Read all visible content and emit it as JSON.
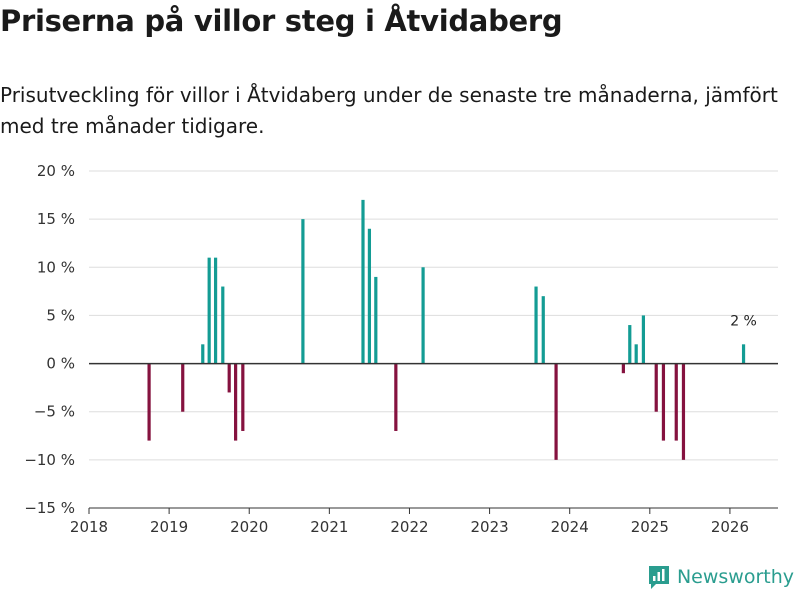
{
  "title": "Priserna på villor steg i Åtvidaberg",
  "subtitle": "Prisutveckling för villor i Åtvidaberg under de senaste tre månaderna, jämfört med tre månader tidigare.",
  "brand": "Newsworthy",
  "colors": {
    "positive": "#139c94",
    "negative": "#85123f",
    "grid": "#dddddd",
    "zero_line": "#333333"
  },
  "chart_data": {
    "type": "bar",
    "title": "Priserna på villor steg i Åtvidaberg",
    "xlabel": "",
    "ylabel": "",
    "x_unit": "year",
    "xlim": [
      2018,
      2026.6
    ],
    "ylim": [
      -15,
      20
    ],
    "y_ticks": [
      -15,
      -10,
      -5,
      0,
      5,
      10,
      15,
      20
    ],
    "y_tick_labels": [
      "−15 %",
      "−10 %",
      "−5 %",
      "0 %",
      "5 %",
      "10 %",
      "15 %",
      "20 %"
    ],
    "x_ticks": [
      2018,
      2019,
      2020,
      2021,
      2022,
      2023,
      2024,
      2025,
      2026
    ],
    "x_tick_labels": [
      "2018",
      "2019",
      "2020",
      "2021",
      "2022",
      "2023",
      "2024",
      "2025",
      "2026"
    ],
    "grid": true,
    "x": [
      2018.75,
      2019.17,
      2019.42,
      2019.5,
      2019.58,
      2019.67,
      2019.75,
      2019.83,
      2019.92,
      2020.67,
      2021.42,
      2021.5,
      2021.58,
      2021.83,
      2022.17,
      2023.58,
      2023.67,
      2023.83,
      2024.67,
      2024.75,
      2024.83,
      2024.92,
      2025.08,
      2025.17,
      2025.33,
      2025.42,
      2026.17
    ],
    "values": [
      -8,
      -5,
      2,
      11,
      11,
      8,
      -3,
      -8,
      -7,
      15,
      17,
      14,
      9,
      -7,
      10,
      8,
      7,
      -10,
      -1,
      4,
      2,
      5,
      -5,
      -8,
      -8,
      -10,
      2
    ],
    "annotations": [
      {
        "x": 2026.17,
        "y": 2,
        "text": "2 %"
      }
    ]
  }
}
